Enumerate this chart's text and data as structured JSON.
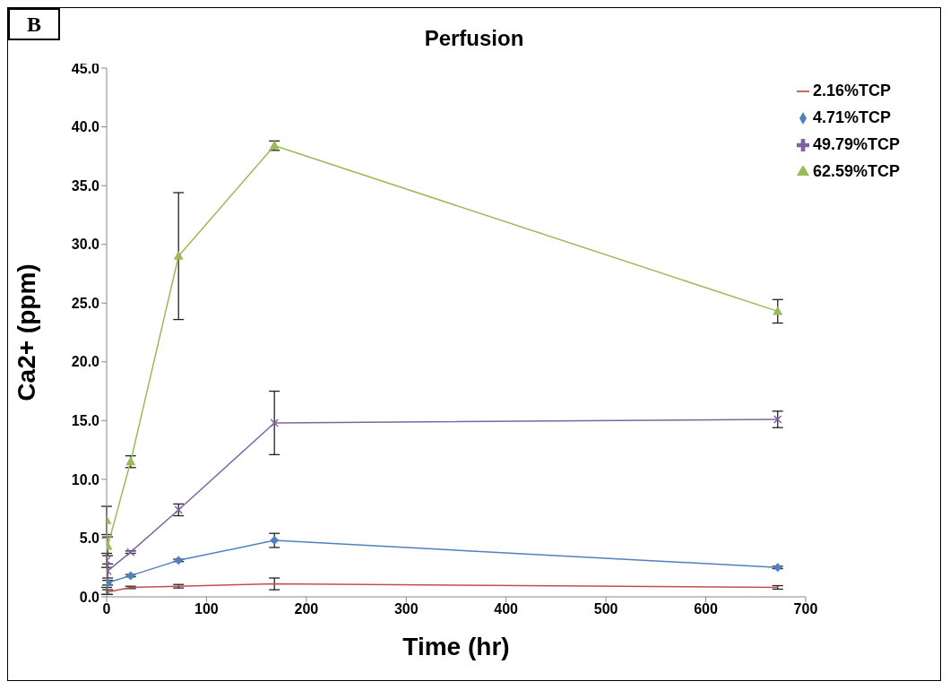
{
  "chart_data": {
    "type": "line",
    "title": "Perfusion",
    "xlabel": "Time (hr)",
    "ylabel": "Ca2+ (ppm)",
    "annotations": [
      "B"
    ],
    "xlim": [
      0,
      700
    ],
    "xticks": [
      0,
      100,
      200,
      300,
      400,
      500,
      600,
      700
    ],
    "ylim": [
      0,
      45
    ],
    "yticks": [
      {
        "value": 0,
        "label": "0.0"
      },
      {
        "value": 5,
        "label": "5.0"
      },
      {
        "value": 10,
        "label": "10.0"
      },
      {
        "value": 15,
        "label": "15.0"
      },
      {
        "value": 20,
        "label": "20.0"
      },
      {
        "value": 25,
        "label": "25.0"
      },
      {
        "value": 30,
        "label": "30.0"
      },
      {
        "value": 35,
        "label": "35.0"
      },
      {
        "value": 40,
        "label": "40.0"
      },
      {
        "value": 45,
        "label": "45.0"
      }
    ],
    "x": [
      0,
      1,
      24,
      72,
      168,
      672
    ],
    "grid": false,
    "legend": "top right",
    "line_style": "solid",
    "series": [
      {
        "name": "2.16%TCP",
        "color": "#c0504d",
        "marker": "none",
        "values": [
          0.5,
          0.4,
          0.8,
          0.9,
          1.1,
          0.8
        ],
        "errors": [
          0.3,
          0.2,
          0.1,
          0.15,
          0.5,
          0.15
        ]
      },
      {
        "name": "4.71%TCP",
        "color": "#4f81bd",
        "marker": "diamond",
        "values": [
          null,
          1.2,
          1.8,
          3.1,
          4.8,
          2.5
        ],
        "errors": [
          null,
          0.2,
          0.1,
          0.1,
          0.6,
          0.1
        ]
      },
      {
        "name": "49.79%TCP",
        "color": "#8064a2",
        "marker": "cross",
        "values": [
          3.1,
          2.2,
          3.8,
          7.4,
          14.8,
          15.1
        ],
        "errors": [
          0.6,
          0.6,
          0.1,
          0.5,
          2.7,
          0.7
        ]
      },
      {
        "name": "62.59%TCP",
        "color": "#9bbb59",
        "marker": "triangle",
        "values": [
          6.5,
          4.3,
          11.5,
          29.0,
          38.4,
          24.3
        ],
        "errors": [
          1.2,
          0.8,
          0.5,
          5.4,
          0.4,
          1.0
        ]
      }
    ]
  }
}
